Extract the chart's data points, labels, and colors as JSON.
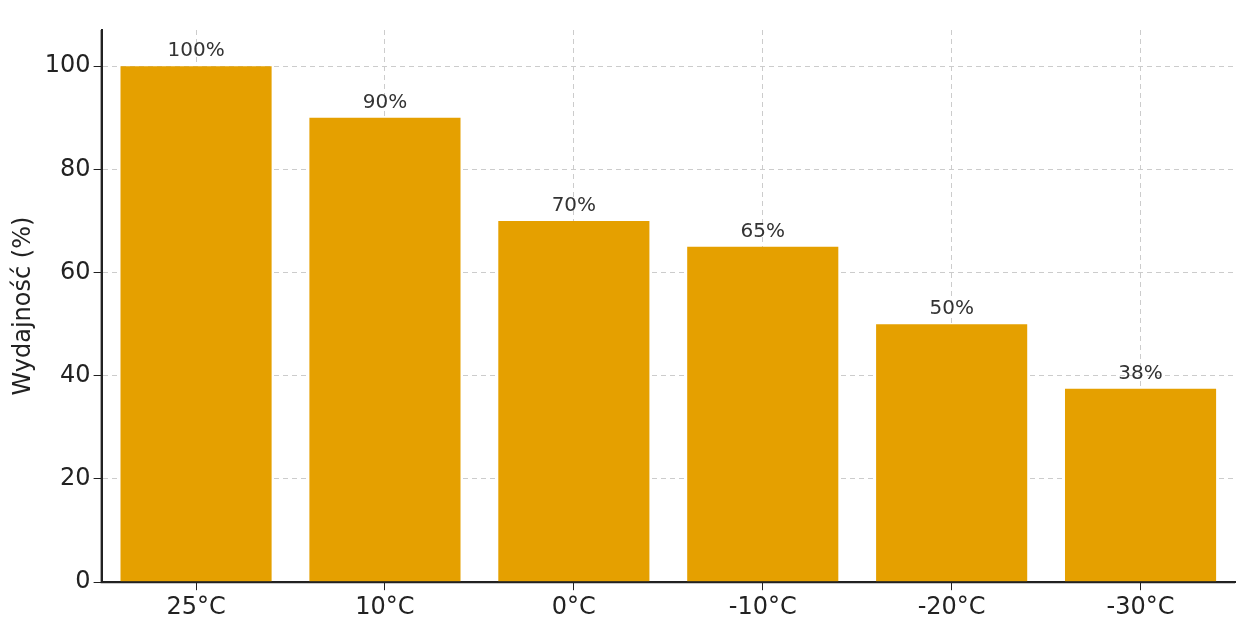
{
  "chart_data": {
    "type": "bar",
    "ylabel": "Wydajność (%)",
    "categories": [
      "25°C",
      "10°C",
      "0°C",
      "-10°C",
      "-20°C",
      "-30°C"
    ],
    "values": [
      100,
      90,
      70,
      65,
      50,
      37.5
    ],
    "value_labels": [
      "100%",
      "90%",
      "70%",
      "65%",
      "50%",
      "38%"
    ],
    "color": "#e5a000",
    "ylim": [
      0,
      107
    ],
    "yticks": [
      0,
      20,
      40,
      60,
      80,
      100
    ],
    "grid": true
  }
}
